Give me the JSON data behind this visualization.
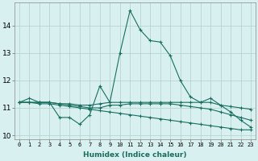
{
  "xlabel": "Humidex (Indice chaleur)",
  "background_color": "#d8f0f0",
  "grid_color": "#b0d0cc",
  "line_color": "#1a6e60",
  "xlim": [
    -0.5,
    23.5
  ],
  "ylim": [
    9.85,
    14.85
  ],
  "xticks": [
    0,
    1,
    2,
    3,
    4,
    5,
    6,
    7,
    8,
    9,
    10,
    11,
    12,
    13,
    14,
    15,
    16,
    17,
    18,
    19,
    20,
    21,
    22,
    23
  ],
  "yticks": [
    10,
    11,
    12,
    13,
    14
  ],
  "line1_x": [
    0,
    1,
    2,
    3,
    4,
    5,
    6,
    7,
    8,
    9,
    10,
    11,
    12,
    13,
    14,
    15,
    16,
    17,
    18,
    19,
    20,
    21,
    22,
    23
  ],
  "line1_y": [
    11.2,
    11.35,
    11.2,
    11.2,
    10.65,
    10.65,
    10.4,
    10.75,
    11.8,
    11.2,
    13.0,
    14.55,
    13.85,
    13.45,
    13.4,
    12.9,
    12.0,
    11.4,
    11.2,
    11.35,
    11.1,
    10.85,
    10.55,
    10.3
  ],
  "line2_x": [
    0,
    1,
    2,
    3,
    4,
    5,
    6,
    7,
    8,
    9,
    10,
    11,
    12,
    13,
    14,
    15,
    16,
    17,
    18,
    19,
    20,
    21,
    22,
    23
  ],
  "line2_y": [
    11.2,
    11.2,
    11.2,
    11.2,
    11.15,
    11.15,
    11.1,
    11.1,
    11.15,
    11.2,
    11.2,
    11.2,
    11.2,
    11.2,
    11.2,
    11.2,
    11.2,
    11.2,
    11.2,
    11.2,
    11.1,
    11.05,
    11.0,
    10.95
  ],
  "line3_x": [
    0,
    1,
    2,
    3,
    4,
    5,
    6,
    7,
    8,
    9,
    10,
    11,
    12,
    13,
    14,
    15,
    16,
    17,
    18,
    19,
    20,
    21,
    22,
    23
  ],
  "line3_y": [
    11.2,
    11.2,
    11.2,
    11.2,
    11.15,
    11.1,
    11.05,
    11.0,
    11.0,
    11.1,
    11.1,
    11.15,
    11.15,
    11.15,
    11.15,
    11.15,
    11.1,
    11.05,
    11.0,
    10.95,
    10.85,
    10.75,
    10.65,
    10.55
  ],
  "line4_x": [
    0,
    1,
    2,
    3,
    4,
    5,
    6,
    7,
    8,
    9,
    10,
    11,
    12,
    13,
    14,
    15,
    16,
    17,
    18,
    19,
    20,
    21,
    22,
    23
  ],
  "line4_y": [
    11.2,
    11.2,
    11.15,
    11.15,
    11.1,
    11.05,
    11.0,
    10.95,
    10.9,
    10.85,
    10.8,
    10.75,
    10.7,
    10.65,
    10.6,
    10.55,
    10.5,
    10.45,
    10.4,
    10.35,
    10.3,
    10.25,
    10.2,
    10.2
  ]
}
